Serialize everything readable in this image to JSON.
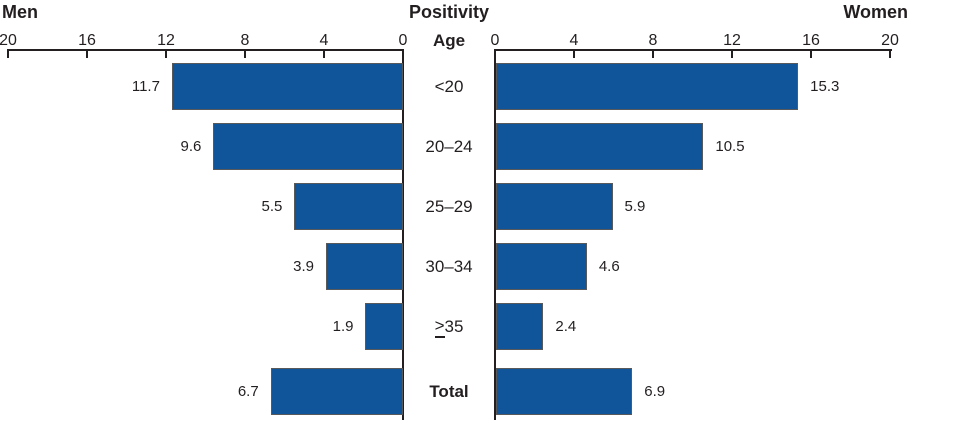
{
  "chart_data": {
    "type": "bar",
    "variant": "butterfly",
    "title": "Positivity",
    "category_axis_label": "Age",
    "categories": [
      {
        "label": "<20",
        "bold": false
      },
      {
        "label": "20–24",
        "bold": false
      },
      {
        "label": "25–29",
        "bold": false
      },
      {
        "label": "30–34",
        "bold": false
      },
      {
        "label": "≥35",
        "bold": false
      },
      {
        "label": "Total",
        "bold": true
      }
    ],
    "series": [
      {
        "name": "Men",
        "side": "left",
        "values": [
          11.7,
          9.6,
          5.5,
          3.9,
          1.9,
          6.7
        ]
      },
      {
        "name": "Women",
        "side": "right",
        "values": [
          15.3,
          10.5,
          5.9,
          4.6,
          2.4,
          6.9
        ]
      }
    ],
    "left_axis_ticks": [
      20,
      16,
      12,
      8,
      4,
      0
    ],
    "right_axis_ticks": [
      0,
      4,
      8,
      12,
      16,
      20
    ],
    "xlim": [
      0,
      20
    ],
    "value_label_decimals": 1,
    "grid": "off",
    "legend": "none",
    "bar_color": "#10559A",
    "bar_border_color": "#58595B",
    "axis_color": "#231F20",
    "text_color": "#231F20"
  }
}
